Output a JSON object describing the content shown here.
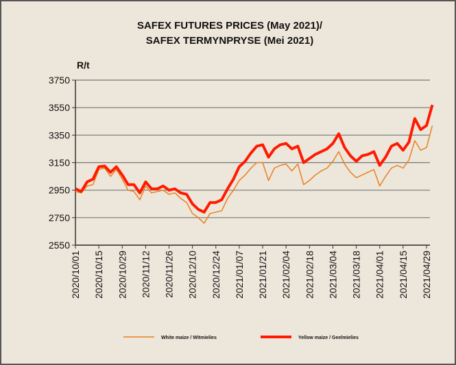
{
  "chart_data": {
    "type": "line",
    "title": "SAFEX FUTURES PRICES (May 2021)/",
    "subtitle": "SAFEX TERMYNPRYSE (Mei 2021)",
    "y_label": "R/t",
    "categories": [
      "2020/10/01",
      null,
      null,
      null,
      "2020/10/15",
      null,
      null,
      null,
      "2020/10/29",
      null,
      null,
      null,
      "2020/11/12",
      null,
      null,
      null,
      "2020/11/26",
      null,
      null,
      null,
      "2020/12/10",
      null,
      null,
      null,
      "2020/12/24",
      null,
      null,
      null,
      "2021/01/07",
      null,
      null,
      null,
      "2021/01/21",
      null,
      null,
      null,
      "2021/02/04",
      null,
      null,
      null,
      "2021/02/18",
      null,
      null,
      null,
      "2021/03/04",
      null,
      null,
      null,
      "2021/03/18",
      null,
      null,
      null,
      "2021/04/01",
      null,
      null,
      null,
      "2021/04/15",
      null,
      null,
      null,
      "2021/04/29",
      null
    ],
    "series": [
      {
        "name": "White maize / Witmielies",
        "color": "#e8801e",
        "width": 1.5,
        "values": [
          2940,
          2930,
          2980,
          2990,
          3100,
          3110,
          3050,
          3100,
          3030,
          2950,
          2940,
          2880,
          2980,
          2930,
          2940,
          2950,
          2920,
          2930,
          2890,
          2860,
          2780,
          2750,
          2710,
          2780,
          2790,
          2800,
          2890,
          2950,
          3020,
          3060,
          3110,
          3150,
          3150,
          3020,
          3110,
          3130,
          3140,
          3090,
          3140,
          2990,
          3020,
          3060,
          3090,
          3110,
          3160,
          3230,
          3140,
          3080,
          3040,
          3060,
          3080,
          3100,
          2980,
          3050,
          3110,
          3130,
          3110,
          3170,
          3310,
          3240,
          3260,
          3420
        ]
      },
      {
        "name": "Yellow maize / Geelmielies",
        "color": "#ff1a00",
        "width": 4,
        "values": [
          2960,
          2940,
          3010,
          3030,
          3120,
          3125,
          3080,
          3120,
          3060,
          2990,
          2990,
          2930,
          3010,
          2960,
          2960,
          2980,
          2950,
          2960,
          2930,
          2920,
          2850,
          2810,
          2790,
          2860,
          2860,
          2880,
          2960,
          3030,
          3120,
          3160,
          3220,
          3270,
          3280,
          3190,
          3250,
          3280,
          3290,
          3250,
          3270,
          3150,
          3180,
          3210,
          3230,
          3250,
          3290,
          3360,
          3260,
          3200,
          3160,
          3200,
          3210,
          3230,
          3130,
          3190,
          3270,
          3290,
          3240,
          3300,
          3470,
          3390,
          3420,
          3570
        ]
      }
    ],
    "ylim": [
      2550,
      3750
    ],
    "yticks": [
      2550,
      2750,
      2950,
      3150,
      3350,
      3550,
      3750
    ],
    "grid": true,
    "legend": "bottom"
  }
}
